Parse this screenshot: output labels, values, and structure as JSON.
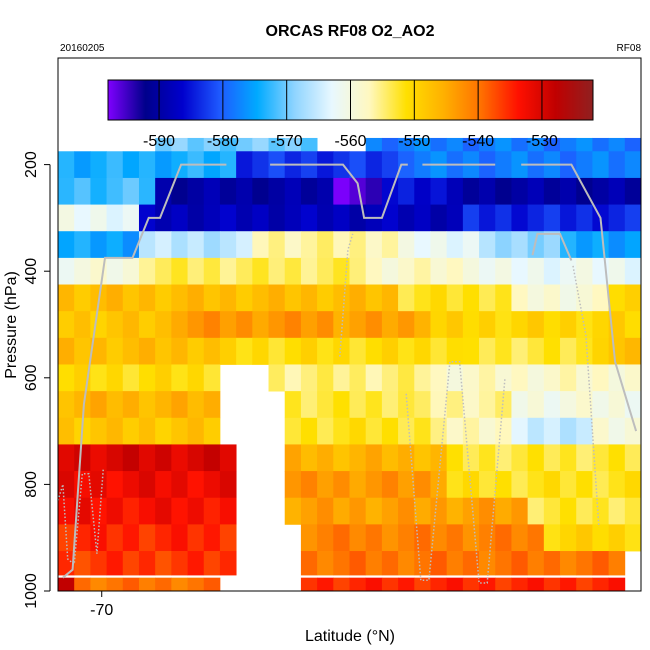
{
  "chart_data": {
    "type": "heatmap",
    "title": "ORCAS RF08 O2_AO2",
    "date_label": "20160205",
    "flight_label": "RF08",
    "xlabel": "Latitude (°N)",
    "ylabel": "Pressure (hPa)",
    "x_tick_labels": [
      "-70"
    ],
    "y_tick_labels": [
      "200",
      "400",
      "600",
      "800",
      "1000"
    ],
    "colorbar_ticks": [
      "-590",
      "-580",
      "-570",
      "-560",
      "-550",
      "-540",
      "-530"
    ],
    "colorbar_range": [
      -598,
      -522
    ],
    "colorscale": [
      "#7f00ff",
      "#00008b",
      "#0000cd",
      "#1e5aff",
      "#00aaff",
      "#8fd4ff",
      "#e8f8ff",
      "#fff8c0",
      "#ffe000",
      "#ffb000",
      "#ff7000",
      "#ff1000",
      "#c00000",
      "#902020"
    ],
    "x_columns": 36,
    "column_width_deg": 0.5,
    "x_range": [
      -72.7,
      -36.7
    ],
    "rows": [
      {
        "p_top": 150,
        "p_bot": 175,
        "segments": [
          [
            6,
            16,
            -570
          ],
          [
            19,
            36,
            -578
          ]
        ]
      },
      {
        "p_top": 175,
        "p_bot": 225,
        "segments": [
          [
            0,
            11,
            -574
          ],
          [
            11,
            21,
            -583
          ],
          [
            21,
            36,
            -578
          ]
        ]
      },
      {
        "p_top": 225,
        "p_bot": 275,
        "segments": [
          [
            0,
            6,
            -572
          ],
          [
            6,
            17,
            -590
          ],
          [
            17,
            20,
            -596
          ],
          [
            20,
            24,
            -585
          ],
          [
            24,
            36,
            -590
          ]
        ]
      },
      {
        "p_top": 275,
        "p_bot": 325,
        "segments": [
          [
            0,
            5,
            -562
          ],
          [
            5,
            25,
            -588
          ],
          [
            25,
            36,
            -584
          ]
        ]
      },
      {
        "p_top": 325,
        "p_bot": 375,
        "segments": [
          [
            0,
            5,
            -575
          ],
          [
            5,
            12,
            -566
          ],
          [
            12,
            21,
            -556
          ],
          [
            21,
            26,
            -562
          ],
          [
            26,
            31,
            -568
          ],
          [
            31,
            36,
            -575
          ]
        ]
      },
      {
        "p_top": 375,
        "p_bot": 425,
        "segments": [
          [
            0,
            5,
            -560
          ],
          [
            5,
            19,
            -554
          ],
          [
            19,
            26,
            -558
          ],
          [
            26,
            36,
            -562
          ]
        ]
      },
      {
        "p_top": 425,
        "p_bot": 475,
        "segments": [
          [
            0,
            21,
            -547
          ],
          [
            21,
            28,
            -552
          ],
          [
            28,
            34,
            -559
          ],
          [
            34,
            36,
            -550
          ]
        ]
      },
      {
        "p_top": 475,
        "p_bot": 525,
        "segments": [
          [
            0,
            7,
            -548
          ],
          [
            7,
            17,
            -543
          ],
          [
            17,
            23,
            -544
          ],
          [
            23,
            36,
            -550
          ]
        ]
      },
      {
        "p_top": 525,
        "p_bot": 575,
        "segments": [
          [
            0,
            10,
            -547
          ],
          [
            10,
            25,
            -551
          ],
          [
            25,
            33,
            -553
          ],
          [
            33,
            36,
            -548
          ]
        ]
      },
      {
        "p_top": 575,
        "p_bot": 625,
        "segments": [
          [
            0,
            10,
            -551
          ],
          [
            13,
            23,
            -555
          ],
          [
            23,
            36,
            -558
          ]
        ]
      },
      {
        "p_top": 625,
        "p_bot": 675,
        "segments": [
          [
            0,
            10,
            -546
          ],
          [
            14,
            22,
            -553
          ],
          [
            22,
            28,
            -556
          ],
          [
            28,
            36,
            -560
          ]
        ]
      },
      {
        "p_top": 675,
        "p_bot": 725,
        "segments": [
          [
            0,
            10,
            -548
          ],
          [
            14,
            23,
            -552
          ],
          [
            23,
            28,
            -557
          ],
          [
            28,
            33,
            -565
          ],
          [
            33,
            36,
            -560
          ]
        ]
      },
      {
        "p_top": 725,
        "p_bot": 775,
        "segments": [
          [
            0,
            11,
            -530
          ],
          [
            14,
            24,
            -546
          ],
          [
            24,
            36,
            -553
          ]
        ]
      },
      {
        "p_top": 775,
        "p_bot": 825,
        "segments": [
          [
            0,
            11,
            -532
          ],
          [
            14,
            24,
            -543
          ],
          [
            24,
            36,
            -552
          ]
        ]
      },
      {
        "p_top": 825,
        "p_bot": 875,
        "segments": [
          [
            0,
            11,
            -533
          ],
          [
            14,
            29,
            -544
          ],
          [
            29,
            36,
            -553
          ]
        ]
      },
      {
        "p_top": 875,
        "p_bot": 925,
        "segments": [
          [
            0,
            11,
            -535
          ],
          [
            15,
            30,
            -541
          ],
          [
            30,
            36,
            -550
          ]
        ]
      },
      {
        "p_top": 925,
        "p_bot": 970,
        "segments": [
          [
            0,
            11,
            -536
          ],
          [
            15,
            35,
            -540
          ]
        ]
      },
      {
        "p_top": 975,
        "p_bot": 1000,
        "segments": [
          [
            0,
            1,
            -527
          ],
          [
            1,
            10,
            -540
          ],
          [
            15,
            35,
            -535
          ]
        ]
      }
    ],
    "flight_track": [
      {
        "style": "solid",
        "points": [
          [
            0.3,
            975
          ],
          [
            0.9,
            960
          ],
          [
            1.6,
            650
          ],
          [
            2.9,
            375
          ],
          [
            4.6,
            375
          ],
          [
            5.6,
            300
          ],
          [
            6.3,
            300
          ],
          [
            7.6,
            200
          ],
          [
            10.4,
            200
          ]
        ]
      },
      {
        "style": "solid",
        "points": [
          [
            13.1,
            200
          ],
          [
            17.6,
            200
          ],
          [
            18.5,
            235
          ],
          [
            18.9,
            300
          ],
          [
            20.0,
            300
          ],
          [
            21.2,
            200
          ],
          [
            21.6,
            200
          ]
        ]
      },
      {
        "style": "solid",
        "points": [
          [
            22.5,
            200
          ],
          [
            27.0,
            200
          ]
        ]
      },
      {
        "style": "solid",
        "points": [
          [
            28.6,
            200
          ],
          [
            31.7,
            200
          ],
          [
            33.5,
            300
          ],
          [
            34.4,
            570
          ],
          [
            35.7,
            700
          ]
        ]
      },
      {
        "style": "solid",
        "points": [
          [
            29.3,
            370
          ],
          [
            29.6,
            330
          ],
          [
            31.0,
            330
          ],
          [
            31.7,
            380
          ]
        ]
      },
      {
        "style": "dotted",
        "points": [
          [
            0.0,
            830
          ],
          [
            0.3,
            800
          ],
          [
            0.6,
            940
          ],
          [
            1.0,
            950
          ],
          [
            1.5,
            780
          ],
          [
            1.9,
            780
          ],
          [
            2.4,
            930
          ],
          [
            2.8,
            770
          ]
        ]
      },
      {
        "style": "dotted",
        "points": [
          [
            17.4,
            560
          ],
          [
            17.9,
            360
          ],
          [
            18.2,
            330
          ]
        ]
      },
      {
        "style": "dotted",
        "points": [
          [
            21.5,
            630
          ],
          [
            22.4,
            980
          ],
          [
            22.9,
            980
          ],
          [
            24.2,
            570
          ],
          [
            24.8,
            570
          ],
          [
            26.0,
            985
          ],
          [
            26.5,
            985
          ],
          [
            27.6,
            600
          ]
        ]
      },
      {
        "style": "dotted",
        "points": [
          [
            31.8,
            390
          ],
          [
            32.6,
            520
          ],
          [
            33.4,
            880
          ]
        ]
      }
    ]
  }
}
